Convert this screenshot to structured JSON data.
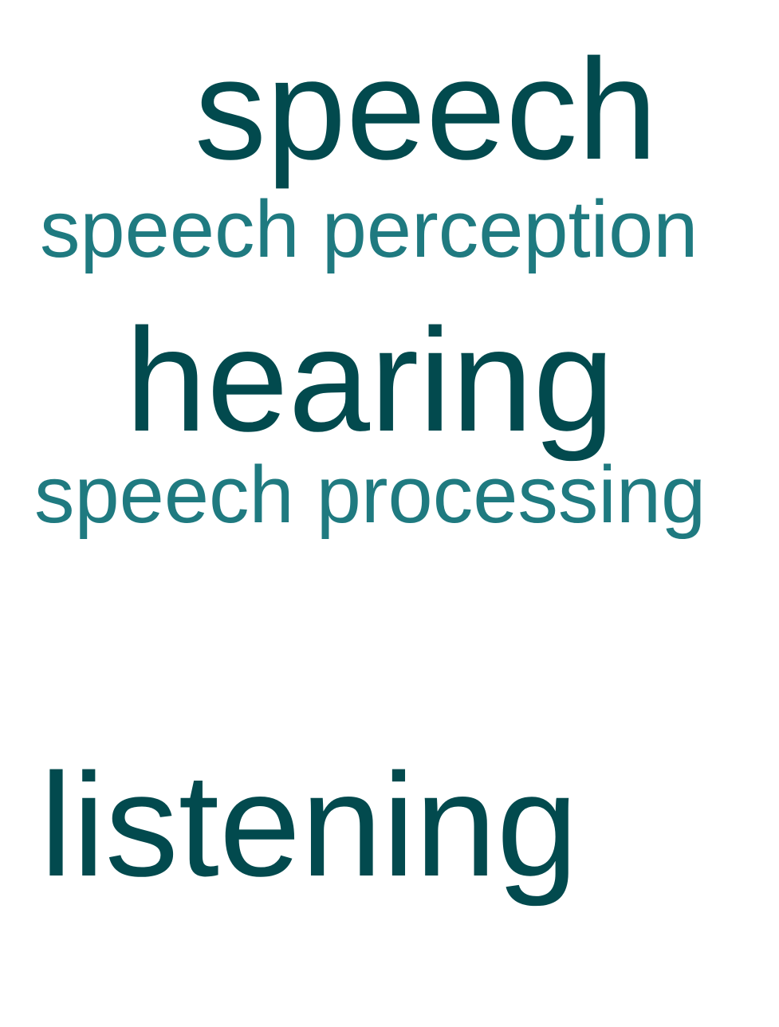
{
  "words": [
    {
      "text": "speech",
      "tone": "dark"
    },
    {
      "text": "speech perception",
      "tone": "light"
    },
    {
      "text": "hearing",
      "tone": "dark"
    },
    {
      "text": "speech processing",
      "tone": "light"
    },
    {
      "text": "listening",
      "tone": "dark"
    }
  ],
  "colors": {
    "dark": "#024a4e",
    "light": "#1f7a80",
    "background": "#ffffff"
  }
}
